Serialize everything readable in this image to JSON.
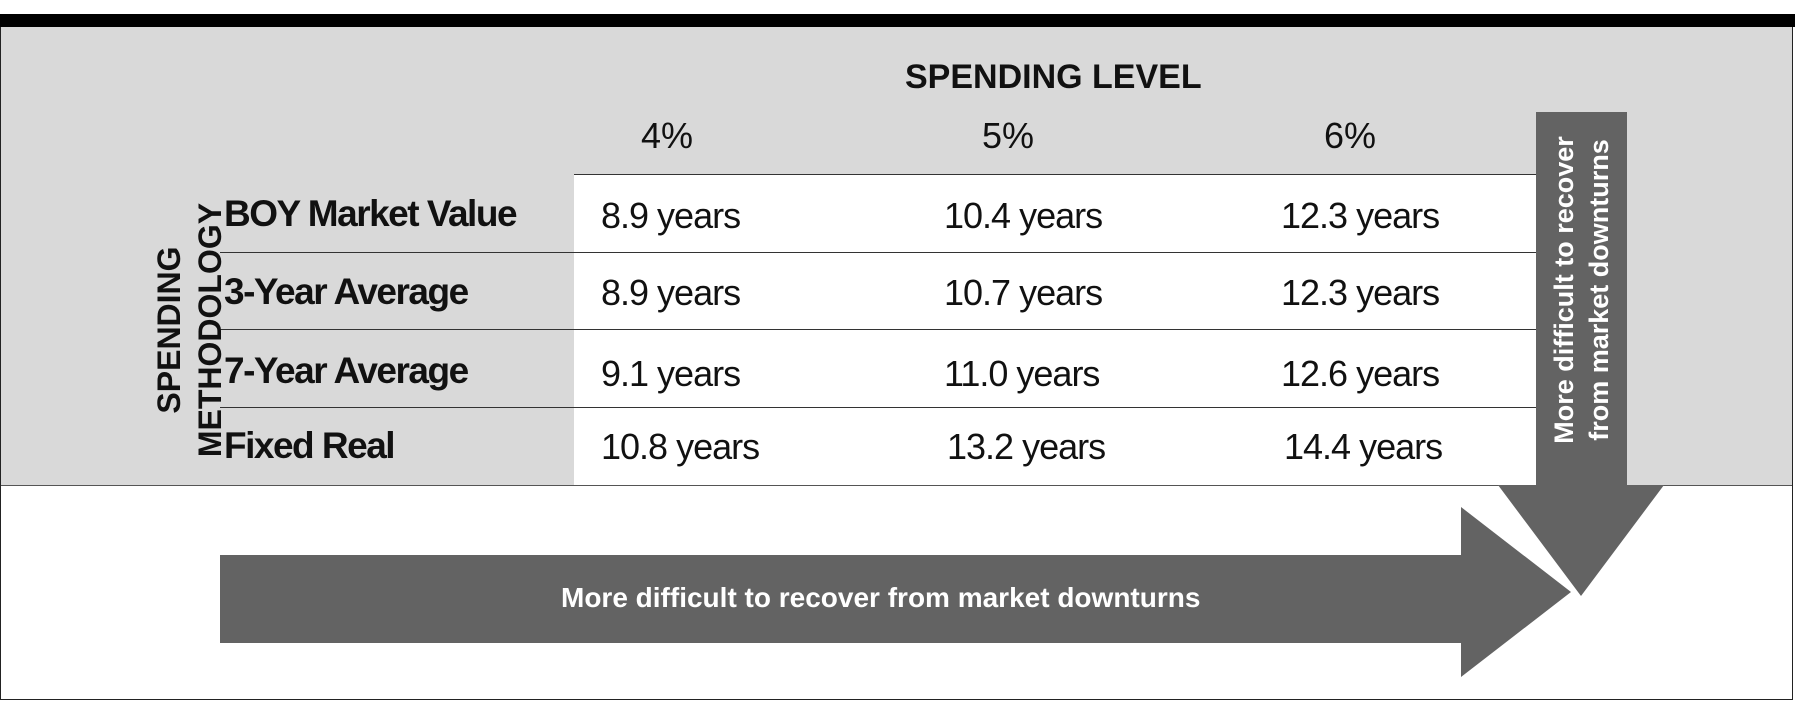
{
  "heading": "SPENDING LEVEL",
  "columns": [
    "4%",
    "5%",
    "6%"
  ],
  "row_axis_label": [
    "SPENDING",
    "METHODOLOGY"
  ],
  "rows": [
    {
      "label": "BOY Market Value",
      "values": [
        "8.9 years",
        "10.4 years",
        "12.3 years"
      ]
    },
    {
      "label": "3-Year Average",
      "values": [
        "8.9 years",
        "10.7 years",
        "12.3 years"
      ]
    },
    {
      "label": "7-Year Average",
      "values": [
        "9.1 years",
        "11.0 years",
        "12.6 years"
      ]
    },
    {
      "label": "Fixed Real",
      "values": [
        "10.8 years",
        "13.2 years",
        "14.4 years"
      ]
    }
  ],
  "vertical_arrow_text": [
    "More difficult to recover",
    "from market downturns"
  ],
  "horizontal_arrow_text": "More difficult to recover from market downturns",
  "colors": {
    "background_panel": "#d9d9d9",
    "arrow": "#636363",
    "top_bar": "#000000"
  }
}
